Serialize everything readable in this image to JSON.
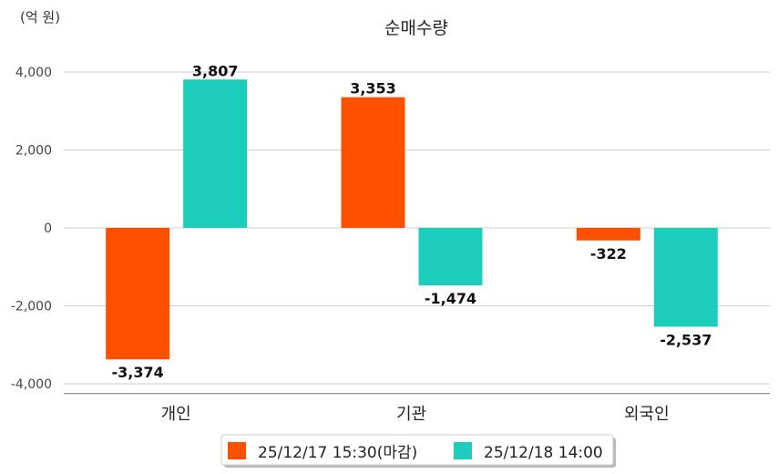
{
  "chart_data": {
    "type": "bar",
    "title": "순매수량",
    "unit_label": "(억 원)",
    "categories": [
      "개인",
      "기관",
      "외국인"
    ],
    "series": [
      {
        "name": "25/12/17 15:30(마감)",
        "color": "#ff5000",
        "values": [
          -3374,
          3353,
          -322
        ],
        "labels": [
          "-3,374",
          "3,353",
          "-322"
        ]
      },
      {
        "name": "25/12/18 14:00",
        "color": "#1dcdbb",
        "values": [
          3807,
          -1474,
          -2537
        ],
        "labels": [
          "3,807",
          "-1,474",
          "-2,537"
        ]
      }
    ],
    "yticks": [
      4000,
      2000,
      0,
      -2000,
      -4000
    ],
    "ytick_labels": [
      "4,000",
      "2,000",
      "0",
      "-2,000",
      "-4,000"
    ],
    "ylim": [
      -4250,
      4000
    ],
    "grid": true,
    "legend_position": "bottom-center"
  }
}
